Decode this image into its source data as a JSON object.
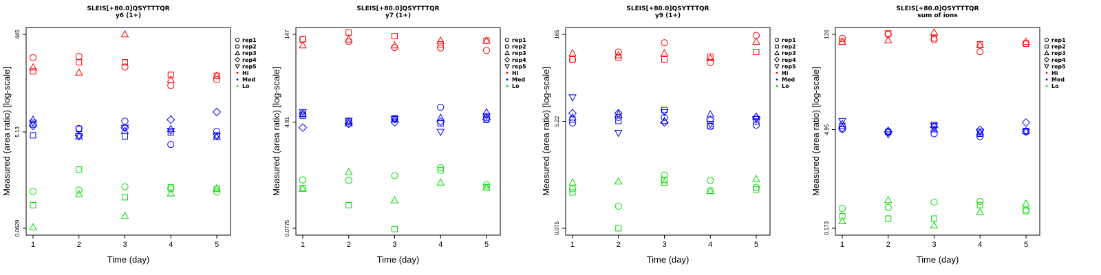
{
  "legend": {
    "shapes": [
      {
        "label": "rep1",
        "icon": "circle-icon"
      },
      {
        "label": "rep2",
        "icon": "square-icon"
      },
      {
        "label": "rep3",
        "icon": "triangle-up-icon"
      },
      {
        "label": "rep4",
        "icon": "diamond-icon"
      },
      {
        "label": "rep5",
        "icon": "triangle-down-icon"
      }
    ],
    "levels": [
      {
        "label": "Hi",
        "color": "#ff0000"
      },
      {
        "label": "Med",
        "color": "#0000ff"
      },
      {
        "label": "Lo",
        "color": "#00dd00"
      }
    ],
    "placement": "right"
  },
  "chart_data": [
    {
      "type": "scatter",
      "title": "SLEIS[+80.0]QSYTTTQR",
      "subtitle": "y6 (1+)",
      "xlabel": "Time (day)",
      "ylabel": "Measured (area ratio) [log-scale]",
      "x_ticks": [
        "1",
        "2",
        "3",
        "4",
        "5"
      ],
      "y_scale": "log",
      "y_ticks": [
        {
          "value": 0.0629,
          "label": "0.0629"
        },
        {
          "value": 5.13,
          "label": "5.13"
        },
        {
          "value": 445,
          "label": "445"
        }
      ],
      "ylim": [
        0.0629,
        445
      ],
      "series": [
        {
          "level": "Hi",
          "shape": "rep1",
          "x": [
            1,
            2,
            3,
            4,
            5
          ],
          "y": [
            154,
            162,
            100,
            43,
            56
          ]
        },
        {
          "level": "Hi",
          "shape": "rep2",
          "x": [
            1,
            2,
            3,
            4,
            5
          ],
          "y": [
            82,
            124,
            124,
            70,
            67
          ]
        },
        {
          "level": "Hi",
          "shape": "rep3",
          "x": [
            1,
            2,
            3,
            4,
            5
          ],
          "y": [
            98,
            78,
            445,
            56,
            67
          ]
        },
        {
          "level": "Med",
          "shape": "rep1",
          "x": [
            1,
            2,
            3,
            4,
            5
          ],
          "y": [
            7.3,
            6.0,
            8.4,
            2.9,
            5.3
          ]
        },
        {
          "level": "Med",
          "shape": "rep2",
          "x": [
            1,
            2,
            3,
            4,
            5
          ],
          "y": [
            4.4,
            5.9,
            4.2,
            5.0,
            4.4
          ]
        },
        {
          "level": "Med",
          "shape": "rep3",
          "x": [
            1,
            2,
            3,
            4,
            5
          ],
          "y": [
            9.0,
            4.2,
            5.4,
            5.9,
            4.1
          ]
        },
        {
          "level": "Med",
          "shape": "rep4",
          "x": [
            1,
            2,
            3,
            4,
            5
          ],
          "y": [
            6.8,
            4.4,
            6.2,
            9.0,
            12.8
          ]
        },
        {
          "level": "Med",
          "shape": "rep5",
          "x": [
            1,
            2,
            3,
            4,
            5
          ],
          "y": [
            7.9,
            4.2,
            6.2,
            5.4,
            4.2
          ]
        },
        {
          "level": "Lo",
          "shape": "rep1",
          "x": [
            1,
            2,
            3,
            4,
            5
          ],
          "y": [
            0.34,
            0.36,
            0.42,
            0.38,
            0.33
          ]
        },
        {
          "level": "Lo",
          "shape": "rep2",
          "x": [
            1,
            2,
            3,
            4,
            5
          ],
          "y": [
            0.18,
            0.92,
            0.26,
            0.41,
            0.38
          ]
        },
        {
          "level": "Lo",
          "shape": "rep3",
          "x": [
            1,
            2,
            3,
            4,
            5
          ],
          "y": [
            0.066,
            0.3,
            0.11,
            0.31,
            0.39
          ]
        }
      ]
    },
    {
      "type": "scatter",
      "title": "SLEIS[+80.0]QSYTTTQR",
      "subtitle": "y7 (1+)",
      "xlabel": "Time (day)",
      "ylabel": "Measured (area ratio) [log-scale]",
      "x_ticks": [
        "1",
        "2",
        "3",
        "4",
        "5"
      ],
      "y_scale": "log",
      "y_ticks": [
        {
          "value": 0.0775,
          "label": "0.0775"
        },
        {
          "value": 4.81,
          "label": "4.81"
        },
        {
          "value": 147,
          "label": "147"
        }
      ],
      "ylim": [
        0.0775,
        147
      ],
      "series": [
        {
          "level": "Hi",
          "shape": "rep1",
          "x": [
            1,
            2,
            3,
            4,
            5
          ],
          "y": [
            121,
            112,
            88,
            87,
            79
          ]
        },
        {
          "level": "Hi",
          "shape": "rep2",
          "x": [
            1,
            2,
            3,
            4,
            5
          ],
          "y": [
            121,
            158,
            137,
            100,
            115
          ]
        },
        {
          "level": "Hi",
          "shape": "rep3",
          "x": [
            1,
            2,
            3,
            4,
            5
          ],
          "y": [
            96,
            121,
            96,
            115,
            115
          ]
        },
        {
          "level": "Med",
          "shape": "rep1",
          "x": [
            1,
            2,
            3,
            4,
            5
          ],
          "y": [
            6.7,
            5.0,
            5.4,
            8.6,
            5.8
          ]
        },
        {
          "level": "Med",
          "shape": "rep2",
          "x": [
            1,
            2,
            3,
            4,
            5
          ],
          "y": [
            6.2,
            4.9,
            5.6,
            4.6,
            5.3
          ]
        },
        {
          "level": "Med",
          "shape": "rep3",
          "x": [
            1,
            2,
            3,
            4,
            5
          ],
          "y": [
            6.6,
            4.6,
            5.4,
            5.7,
            7.1
          ]
        },
        {
          "level": "Med",
          "shape": "rep4",
          "x": [
            1,
            2,
            3,
            4,
            5
          ],
          "y": [
            3.9,
            4.5,
            4.8,
            4.9,
            5.4
          ]
        },
        {
          "level": "Med",
          "shape": "rep5",
          "x": [
            1,
            2,
            3,
            4,
            5
          ],
          "y": [
            7.1,
            5.1,
            5.4,
            3.3,
            6.2
          ]
        },
        {
          "level": "Lo",
          "shape": "rep1",
          "x": [
            1,
            2,
            3,
            4,
            5
          ],
          "y": [
            0.51,
            0.5,
            0.6,
            0.82,
            0.42
          ]
        },
        {
          "level": "Lo",
          "shape": "rep2",
          "x": [
            1,
            2,
            3,
            4,
            5
          ],
          "y": [
            0.37,
            0.19,
            0.075,
            0.74,
            0.38
          ]
        },
        {
          "level": "Lo",
          "shape": "rep3",
          "x": [
            1,
            2,
            3,
            4,
            5
          ],
          "y": [
            0.36,
            0.69,
            0.23,
            0.46,
            0.38
          ]
        }
      ]
    },
    {
      "type": "scatter",
      "title": "SLEIS[+80.0]QSYTTTQR",
      "subtitle": "y9 (1+)",
      "xlabel": "Time (day)",
      "ylabel": "Measured (area ratio) [log-scale]",
      "x_ticks": [
        "1",
        "2",
        "3",
        "4",
        "5"
      ],
      "y_scale": "log",
      "y_ticks": [
        {
          "value": 0.075,
          "label": "0.075"
        },
        {
          "value": 5.22,
          "label": "5.22"
        },
        {
          "value": 165,
          "label": "165"
        }
      ],
      "ylim": [
        0.075,
        165
      ],
      "series": [
        {
          "level": "Hi",
          "shape": "rep1",
          "x": [
            1,
            2,
            3,
            4,
            5
          ],
          "y": [
            61,
            82,
            118,
            54,
            158
          ]
        },
        {
          "level": "Hi",
          "shape": "rep2",
          "x": [
            1,
            2,
            3,
            4,
            5
          ],
          "y": [
            61,
            66,
            61,
            68,
            82
          ]
        },
        {
          "level": "Hi",
          "shape": "rep3",
          "x": [
            1,
            2,
            3,
            4,
            5
          ],
          "y": [
            78,
            72,
            78,
            64,
            123
          ]
        },
        {
          "level": "Med",
          "shape": "rep1",
          "x": [
            1,
            2,
            3,
            4,
            5
          ],
          "y": [
            4.9,
            6.1,
            6.1,
            4.3,
            4.5
          ]
        },
        {
          "level": "Med",
          "shape": "rep2",
          "x": [
            1,
            2,
            3,
            4,
            5
          ],
          "y": [
            5.6,
            5.3,
            8.2,
            4.3,
            5.2
          ]
        },
        {
          "level": "Med",
          "shape": "rep3",
          "x": [
            1,
            2,
            3,
            4,
            5
          ],
          "y": [
            6.1,
            6.9,
            5.3,
            6.9,
            6.3
          ]
        },
        {
          "level": "Med",
          "shape": "rep4",
          "x": [
            1,
            2,
            3,
            4,
            5
          ],
          "y": [
            7.2,
            7.2,
            5.0,
            5.6,
            6.1
          ]
        },
        {
          "level": "Med",
          "shape": "rep5",
          "x": [
            1,
            2,
            3,
            4,
            5
          ],
          "y": [
            13.5,
            3.3,
            7.5,
            4.7,
            5.7
          ]
        },
        {
          "level": "Lo",
          "shape": "rep1",
          "x": [
            1,
            2,
            3,
            4,
            5
          ],
          "y": [
            0.36,
            0.18,
            0.62,
            0.5,
            0.38
          ]
        },
        {
          "level": "Lo",
          "shape": "rep2",
          "x": [
            1,
            2,
            3,
            4,
            5
          ],
          "y": [
            0.31,
            0.075,
            0.51,
            0.33,
            0.35
          ]
        },
        {
          "level": "Lo",
          "shape": "rep3",
          "x": [
            1,
            2,
            3,
            4,
            5
          ],
          "y": [
            0.46,
            0.48,
            0.46,
            0.33,
            0.53
          ]
        }
      ]
    },
    {
      "type": "scatter",
      "title": "SLEIS[+80.0]QSYTTTQR",
      "subtitle": "sum of ions",
      "xlabel": "Time (day)",
      "ylabel": "Measured (area ratio) [log-scale]",
      "x_ticks": [
        "1",
        "2",
        "3",
        "4",
        "5"
      ],
      "y_scale": "log",
      "y_ticks": [
        {
          "value": 0.173,
          "label": "0.173"
        },
        {
          "value": 4.95,
          "label": "4.95"
        },
        {
          "value": 126,
          "label": "126"
        }
      ],
      "ylim": [
        0.173,
        126
      ],
      "series": [
        {
          "level": "Hi",
          "shape": "rep1",
          "x": [
            1,
            2,
            3,
            4,
            5
          ],
          "y": [
            110,
            126,
            105,
            70,
            92
          ]
        },
        {
          "level": "Hi",
          "shape": "rep2",
          "x": [
            1,
            2,
            3,
            4,
            5
          ],
          "y": [
            98,
            130,
            110,
            90,
            92
          ]
        },
        {
          "level": "Hi",
          "shape": "rep3",
          "x": [
            1,
            2,
            3,
            4,
            5
          ],
          "y": [
            98,
            103,
            135,
            88,
            98
          ]
        },
        {
          "level": "Med",
          "shape": "rep1",
          "x": [
            1,
            2,
            3,
            4,
            5
          ],
          "y": [
            5.0,
            4.5,
            4.3,
            3.9,
            4.6
          ]
        },
        {
          "level": "Med",
          "shape": "rep2",
          "x": [
            1,
            2,
            3,
            4,
            5
          ],
          "y": [
            5.6,
            4.6,
            5.8,
            4.3,
            4.7
          ]
        },
        {
          "level": "Med",
          "shape": "rep3",
          "x": [
            1,
            2,
            3,
            4,
            5
          ],
          "y": [
            6.0,
            4.8,
            5.0,
            4.5,
            4.7
          ]
        },
        {
          "level": "Med",
          "shape": "rep4",
          "x": [
            1,
            2,
            3,
            4,
            5
          ],
          "y": [
            5.2,
            4.6,
            5.4,
            4.9,
            6.3
          ]
        },
        {
          "level": "Med",
          "shape": "rep5",
          "x": [
            1,
            2,
            3,
            4,
            5
          ],
          "y": [
            6.6,
            4.2,
            5.6,
            4.6,
            4.6
          ]
        },
        {
          "level": "Lo",
          "shape": "rep1",
          "x": [
            1,
            2,
            3,
            4,
            5
          ],
          "y": [
            0.34,
            0.35,
            0.42,
            0.43,
            0.31
          ]
        },
        {
          "level": "Lo",
          "shape": "rep2",
          "x": [
            1,
            2,
            3,
            4,
            5
          ],
          "y": [
            0.26,
            0.24,
            0.24,
            0.38,
            0.32
          ]
        },
        {
          "level": "Lo",
          "shape": "rep3",
          "x": [
            1,
            2,
            3,
            4,
            5
          ],
          "y": [
            0.22,
            0.45,
            0.19,
            0.3,
            0.4
          ]
        }
      ]
    }
  ]
}
